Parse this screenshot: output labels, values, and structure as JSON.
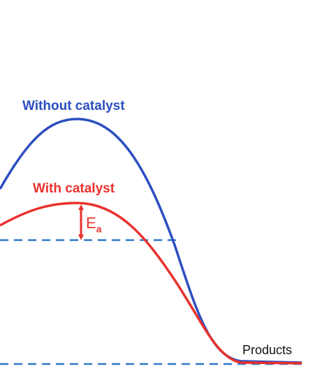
{
  "labels": {
    "without_catalyst": "Without catalyst",
    "with_catalyst": "With catalyst",
    "activation_energy": "E",
    "activation_energy_subscript": "a",
    "products": "Products"
  }
}
